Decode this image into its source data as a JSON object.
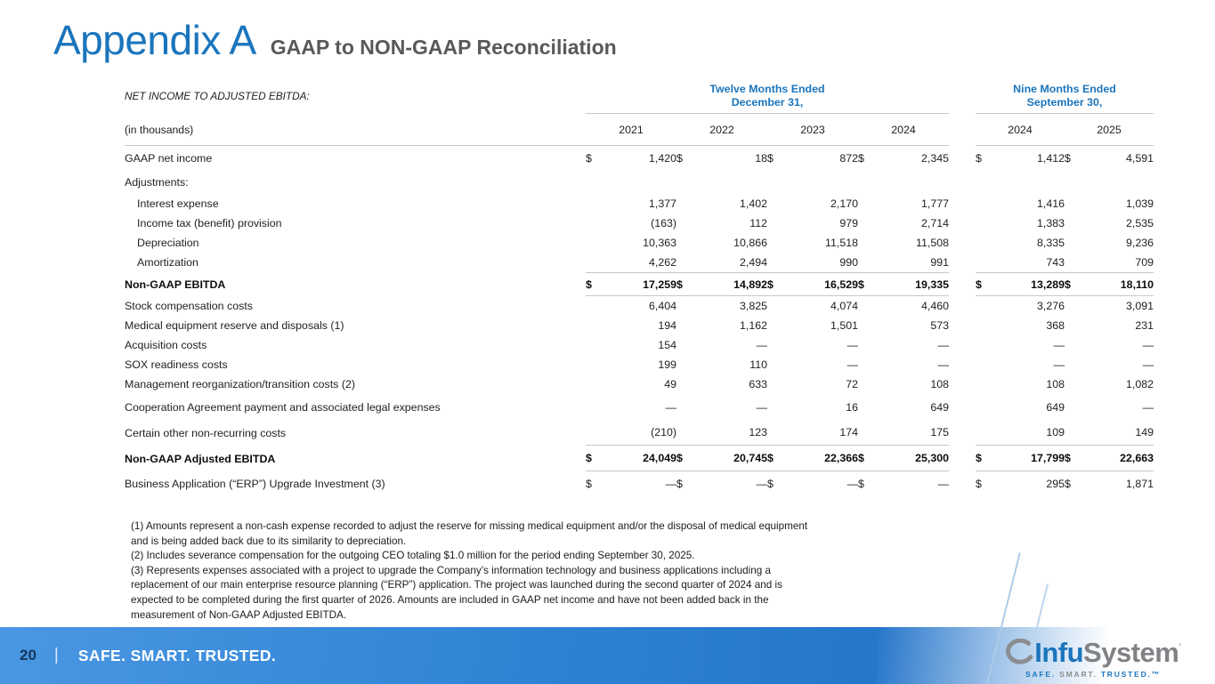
{
  "slide": {
    "title": "Appendix A",
    "subtitle": "GAAP to NON-GAAP Reconciliation",
    "page_number": "20",
    "footer_separator": "|",
    "footer_tagline": "SAFE. SMART. TRUSTED.",
    "accent_blue": "#1b75bc",
    "footer_gradient": [
      "#4a97e3",
      "#2575ca"
    ]
  },
  "table": {
    "section_label": "NET INCOME TO ADJUSTED EBITDA:",
    "units_label": "(in thousands)",
    "group_headers": [
      {
        "line1": "Twelve Months Ended",
        "line2": "December 31,"
      },
      {
        "line1": "Nine Months Ended",
        "line2": "September 30,"
      }
    ],
    "year_columns": [
      "2021",
      "2022",
      "2023",
      "2024",
      "2024",
      "2025"
    ],
    "rows": [
      {
        "label": "GAAP net income",
        "dollar": true,
        "bold": false,
        "indent": false,
        "spacing": "roomy",
        "rule_top": false,
        "rule_bottom": false,
        "values": [
          "1,420",
          "18",
          "872",
          "2,345",
          "1,412",
          "4,591"
        ]
      },
      {
        "label": "Adjustments:",
        "dollar": false,
        "bold": false,
        "indent": false,
        "spacing": "roomy",
        "rule_top": false,
        "rule_bottom": false,
        "values": null
      },
      {
        "label": "Interest expense",
        "dollar": false,
        "bold": false,
        "indent": true,
        "spacing": "normal",
        "rule_top": false,
        "rule_bottom": false,
        "values": [
          "1,377",
          "1,402",
          "2,170",
          "1,777",
          "1,416",
          "1,039"
        ]
      },
      {
        "label": "Income tax (benefit) provision",
        "dollar": false,
        "bold": false,
        "indent": true,
        "spacing": "normal",
        "rule_top": false,
        "rule_bottom": false,
        "values": [
          "(163)",
          "112",
          "979",
          "2,714",
          "1,383",
          "2,535"
        ]
      },
      {
        "label": "Depreciation",
        "dollar": false,
        "bold": false,
        "indent": true,
        "spacing": "normal",
        "rule_top": false,
        "rule_bottom": false,
        "values": [
          "10,363",
          "10,866",
          "11,518",
          "11,508",
          "8,335",
          "9,236"
        ]
      },
      {
        "label": "Amortization",
        "dollar": false,
        "bold": false,
        "indent": true,
        "spacing": "normal",
        "rule_top": false,
        "rule_bottom": false,
        "values": [
          "4,262",
          "2,494",
          "990",
          "991",
          "743",
          "709"
        ]
      },
      {
        "label": "Non-GAAP EBITDA",
        "dollar": true,
        "bold": true,
        "indent": false,
        "spacing": "roomy",
        "rule_top": true,
        "rule_bottom": true,
        "values": [
          "17,259",
          "14,892",
          "16,529",
          "19,335",
          "13,289",
          "18,110"
        ]
      },
      {
        "label": "Stock compensation costs",
        "dollar": false,
        "bold": false,
        "indent": false,
        "spacing": "normal",
        "rule_top": false,
        "rule_bottom": false,
        "values": [
          "6,404",
          "3,825",
          "4,074",
          "4,460",
          "3,276",
          "3,091"
        ]
      },
      {
        "label": "Medical equipment reserve and disposals (1)",
        "dollar": false,
        "bold": false,
        "indent": false,
        "spacing": "normal",
        "rule_top": false,
        "rule_bottom": false,
        "values": [
          "194",
          "1,162",
          "1,501",
          "573",
          "368",
          "231"
        ]
      },
      {
        "label": "Acquisition costs",
        "dollar": false,
        "bold": false,
        "indent": false,
        "spacing": "normal",
        "rule_top": false,
        "rule_bottom": false,
        "values": [
          "154",
          "—",
          "—",
          "—",
          "—",
          "—"
        ]
      },
      {
        "label": "SOX readiness costs",
        "dollar": false,
        "bold": false,
        "indent": false,
        "spacing": "normal",
        "rule_top": false,
        "rule_bottom": false,
        "values": [
          "199",
          "110",
          "—",
          "—",
          "—",
          "—"
        ]
      },
      {
        "label": "Management reorganization/transition costs (2)",
        "dollar": false,
        "bold": false,
        "indent": false,
        "spacing": "normal",
        "rule_top": false,
        "rule_bottom": false,
        "values": [
          "49",
          "633",
          "72",
          "108",
          "108",
          "1,082"
        ]
      },
      {
        "label": "Cooperation Agreement payment and associated legal expenses",
        "dollar": false,
        "bold": false,
        "indent": false,
        "spacing": "tall",
        "rule_top": false,
        "rule_bottom": false,
        "values": [
          "—",
          "—",
          "16",
          "649",
          "649",
          "—"
        ]
      },
      {
        "label": "Certain other non-recurring costs",
        "dollar": false,
        "bold": false,
        "indent": false,
        "spacing": "tall",
        "rule_top": false,
        "rule_bottom": true,
        "values": [
          "(210)",
          "123",
          "174",
          "175",
          "109",
          "149"
        ]
      },
      {
        "label": "Non-GAAP Adjusted EBITDA",
        "dollar": true,
        "bold": true,
        "indent": false,
        "spacing": "tall",
        "rule_top": false,
        "rule_bottom": true,
        "values": [
          "24,049",
          "20,745",
          "22,366",
          "25,300",
          "17,799",
          "22,663"
        ]
      },
      {
        "label": "Business Application (“ERP”) Upgrade Investment (3)",
        "dollar": true,
        "bold": false,
        "indent": false,
        "spacing": "roomy",
        "rule_top": false,
        "rule_bottom": false,
        "values": [
          "—",
          "—",
          "—",
          "—",
          "295",
          "1,871"
        ]
      }
    ]
  },
  "footnotes": [
    "(1) Amounts represent a non-cash expense recorded to adjust the reserve for missing medical equipment and/or the disposal of medical equipment and is being added back due to its similarity to depreciation.",
    "(2) Includes severance compensation for the outgoing CEO totaling $1.0 million for the period ending September 30, 2025.",
    "(3) Represents expenses associated with a project to upgrade the Company’s information technology and business applications including a replacement of our main enterprise resource planning (“ERP”) application. The project was launched during the second quarter of 2024 and is expected to be completed during the first quarter of 2026. Amounts are included in GAAP net income and have not been added back in the measurement of Non-GAAP Adjusted EBITDA."
  ],
  "logo": {
    "brand_primary": "Infu",
    "brand_secondary": "System",
    "trademark": "’",
    "tagline": [
      "SAFE.",
      "SMART.",
      "TRUSTED.™"
    ]
  }
}
